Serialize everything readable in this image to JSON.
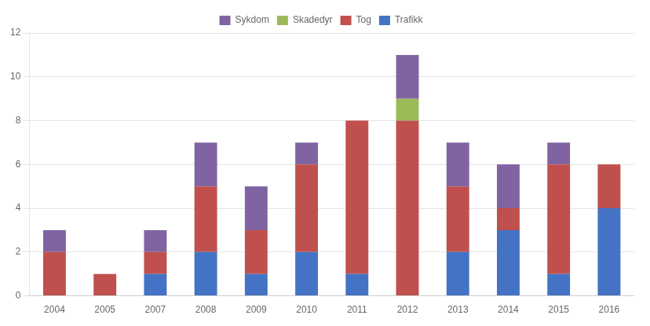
{
  "chart_data": {
    "type": "bar",
    "stacked": true,
    "categories": [
      "2004",
      "2005",
      "2007",
      "2008",
      "2009",
      "2010",
      "2011",
      "2012",
      "2013",
      "2014",
      "2015",
      "2016"
    ],
    "series": [
      {
        "name": "Trafikk",
        "color": "#4472C4",
        "values": [
          0,
          0,
          1,
          2,
          1,
          2,
          1,
          0,
          2,
          3,
          1,
          4
        ]
      },
      {
        "name": "Tog",
        "color": "#C0504D",
        "values": [
          2,
          1,
          1,
          3,
          2,
          4,
          7,
          8,
          3,
          1,
          5,
          2
        ]
      },
      {
        "name": "Skadedyr",
        "color": "#9BBB59",
        "values": [
          0,
          0,
          0,
          0,
          0,
          0,
          0,
          1,
          0,
          0,
          0,
          0
        ]
      },
      {
        "name": "Sykdom",
        "color": "#8064A2",
        "values": [
          1,
          0,
          1,
          2,
          2,
          1,
          0,
          2,
          2,
          2,
          1,
          0
        ]
      }
    ],
    "ylim": [
      0,
      12
    ],
    "yticks": [
      0,
      2,
      4,
      6,
      8,
      10,
      12
    ],
    "grid": true,
    "legend": "top"
  }
}
